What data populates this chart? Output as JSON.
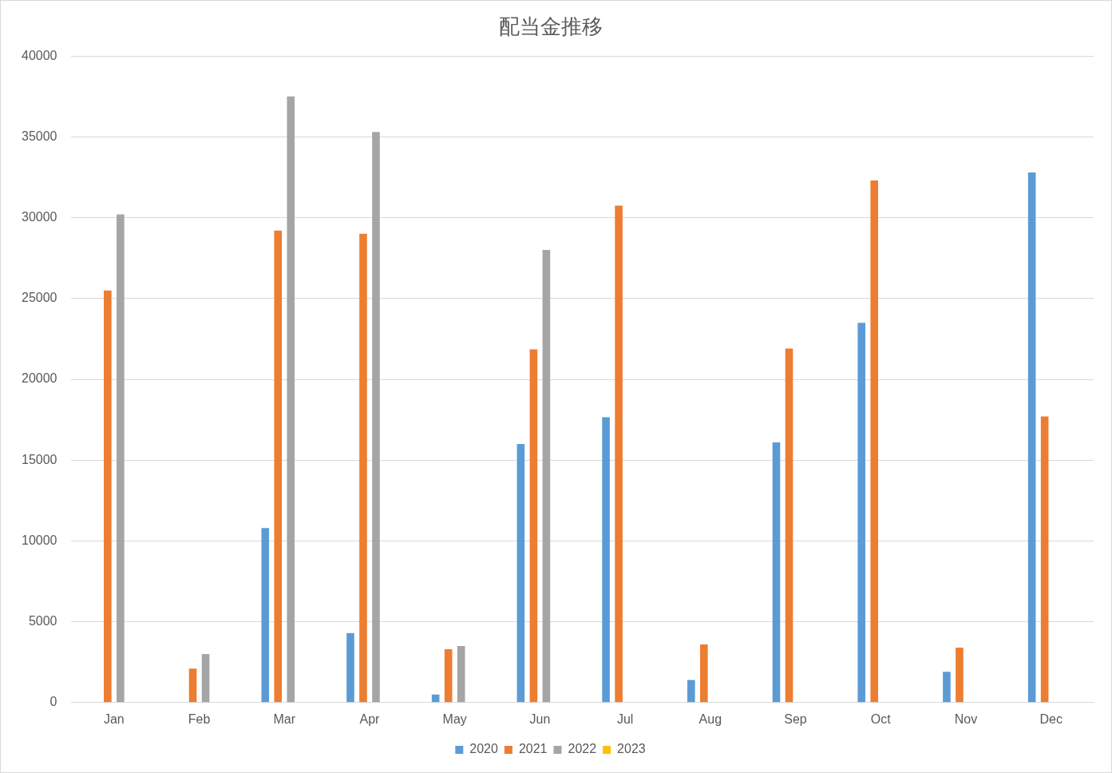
{
  "chart_data": {
    "type": "bar",
    "title": "配当金推移",
    "categories": [
      "Jan",
      "Feb",
      "Mar",
      "Apr",
      "May",
      "Jun",
      "Jul",
      "Aug",
      "Sep",
      "Oct",
      "Nov",
      "Dec"
    ],
    "series": [
      {
        "name": "2020",
        "color": "#5b9bd5",
        "values": [
          null,
          null,
          10800,
          4300,
          500,
          16000,
          17650,
          1400,
          16100,
          23500,
          1900,
          32800
        ]
      },
      {
        "name": "2021",
        "color": "#ed7d31",
        "values": [
          25500,
          2100,
          29200,
          29000,
          3300,
          21850,
          30750,
          3600,
          21900,
          32300,
          3400,
          17700
        ]
      },
      {
        "name": "2022",
        "color": "#a5a5a5",
        "values": [
          30200,
          3000,
          37500,
          35300,
          3500,
          28000,
          null,
          null,
          null,
          null,
          null,
          null
        ]
      },
      {
        "name": "2023",
        "color": "#ffc000",
        "values": [
          null,
          null,
          null,
          null,
          null,
          null,
          null,
          null,
          null,
          null,
          null,
          null
        ]
      }
    ],
    "ylim": [
      0,
      40000
    ],
    "yticks": [
      0,
      5000,
      10000,
      15000,
      20000,
      25000,
      30000,
      35000,
      40000
    ],
    "grid": "y",
    "legend": "bottom"
  }
}
